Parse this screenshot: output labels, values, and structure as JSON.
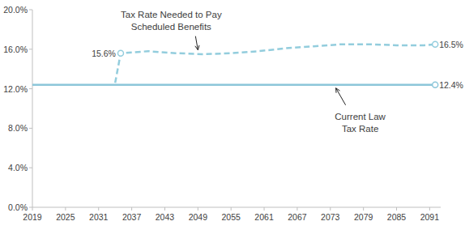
{
  "chart_data": {
    "type": "line",
    "x": [
      2019,
      2034,
      2035,
      2040,
      2045,
      2050,
      2055,
      2060,
      2065,
      2070,
      2075,
      2080,
      2085,
      2090,
      2092
    ],
    "series": [
      {
        "color": "#93cddd",
        "line_style": "dashed",
        "marker": "circle",
        "values": [
          null,
          12.6,
          15.6,
          15.8,
          15.6,
          15.5,
          15.6,
          15.8,
          16.1,
          16.3,
          16.5,
          16.5,
          16.4,
          16.4,
          16.5
        ],
        "value_labels": [
          null,
          null,
          "15.6%",
          null,
          null,
          null,
          null,
          null,
          null,
          null,
          null,
          null,
          null,
          null,
          "16.5%"
        ]
      },
      {
        "color": "#8cc6d9",
        "line_style": "solid",
        "marker": "circle",
        "values": [
          12.4,
          12.4,
          12.4,
          12.4,
          12.4,
          12.4,
          12.4,
          12.4,
          12.4,
          12.4,
          12.4,
          12.4,
          12.4,
          12.4,
          12.4
        ],
        "value_labels": [
          null,
          null,
          null,
          null,
          null,
          null,
          null,
          null,
          null,
          null,
          null,
          null,
          null,
          null,
          "12.4%"
        ]
      }
    ],
    "annotations": [
      {
        "text": [
          "Tax Rate Needed to Pay",
          "Scheduled Benefits"
        ],
        "series": 0,
        "x": 2049
      },
      {
        "text": [
          "Current Law",
          "Tax Rate"
        ],
        "series": 1,
        "x": 2074
      }
    ],
    "xlim": [
      2019,
      2093
    ],
    "xticks": [
      2019,
      2025,
      2031,
      2037,
      2043,
      2049,
      2055,
      2061,
      2067,
      2073,
      2079,
      2085,
      2091
    ],
    "ylim": [
      0,
      20
    ],
    "yticks": [
      {
        "value": 0,
        "label": "0.0%"
      },
      {
        "value": 4,
        "label": "4.0%"
      },
      {
        "value": 8,
        "label": "8.0%"
      },
      {
        "value": 12,
        "label": "12.0%"
      },
      {
        "value": 16,
        "label": "16.0%"
      },
      {
        "value": 20,
        "label": "20.0%"
      }
    ],
    "grid": false,
    "data_labels": true
  }
}
